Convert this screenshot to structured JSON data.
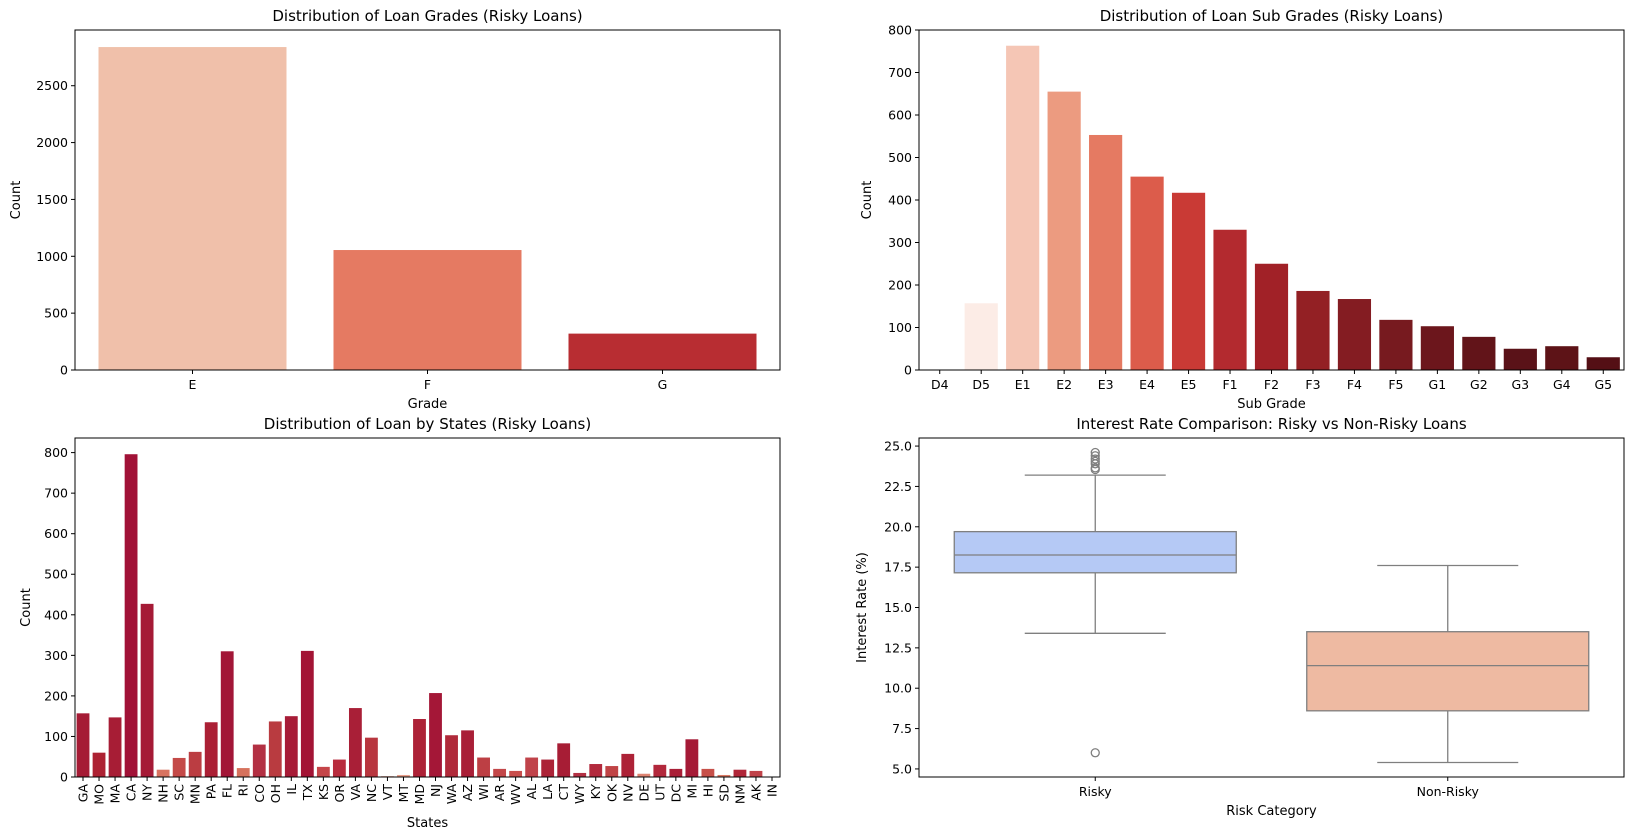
{
  "chart_data": [
    {
      "id": "grades",
      "type": "bar",
      "title": "Distribution of Loan Grades (Risky Loans)",
      "xlabel": "Grade",
      "ylabel": "Count",
      "categories": [
        "E",
        "F",
        "G"
      ],
      "values": [
        2840,
        1055,
        320
      ],
      "colors": [
        "#f0c0aa",
        "#e57a62",
        "#b82d32"
      ],
      "ylim": [
        0,
        2990
      ],
      "yticks": [
        0,
        500,
        1000,
        1500,
        2000,
        2500
      ],
      "grid": false
    },
    {
      "id": "subgrades",
      "type": "bar",
      "title": "Distribution of Loan Sub Grades (Risky Loans)",
      "xlabel": "Sub Grade",
      "ylabel": "Count",
      "categories": [
        "D4",
        "D5",
        "E1",
        "E2",
        "E3",
        "E4",
        "E5",
        "F1",
        "F2",
        "F3",
        "F4",
        "F5",
        "G1",
        "G2",
        "G3",
        "G4",
        "G5"
      ],
      "values": [
        1,
        157,
        763,
        655,
        553,
        455,
        417,
        330,
        250,
        186,
        167,
        118,
        103,
        78,
        50,
        56,
        30
      ],
      "colors": [
        "#fff5f0",
        "#fcece6",
        "#f5c6b5",
        "#ec9b80",
        "#e57a62",
        "#dc5c4b",
        "#c93a35",
        "#b32a2f",
        "#a12127",
        "#932024",
        "#841c22",
        "#771a1f",
        "#6c161c",
        "#621419",
        "#5a1218",
        "#5d1317",
        "#540f15"
      ],
      "ylim": [
        0,
        800
      ],
      "yticks": [
        0,
        100,
        200,
        300,
        400,
        500,
        600,
        700,
        800
      ],
      "grid": false
    },
    {
      "id": "states",
      "type": "bar",
      "title": "Distribution of Loan by States (Risky Loans)",
      "xlabel": "States",
      "ylabel": "Count",
      "categories": [
        "GA",
        "MO",
        "MA",
        "CA",
        "NY",
        "NH",
        "SC",
        "MN",
        "PA",
        "FL",
        "RI",
        "CO",
        "OH",
        "IL",
        "TX",
        "KS",
        "OR",
        "VA",
        "NC",
        "VT",
        "MT",
        "MD",
        "NJ",
        "WA",
        "AZ",
        "WI",
        "AR",
        "WV",
        "AL",
        "LA",
        "CT",
        "WY",
        "KY",
        "OK",
        "NV",
        "DE",
        "UT",
        "DC",
        "MI",
        "HI",
        "SD",
        "NM",
        "AK",
        "IN"
      ],
      "values": [
        157,
        60,
        147,
        796,
        427,
        18,
        47,
        62,
        135,
        310,
        22,
        80,
        137,
        150,
        311,
        25,
        43,
        170,
        97,
        2,
        5,
        143,
        207,
        103,
        115,
        48,
        20,
        15,
        48,
        43,
        83,
        10,
        32,
        27,
        57,
        8,
        30,
        20,
        93,
        20,
        5,
        18,
        15,
        0
      ],
      "colors": [
        "#a51b35",
        "#ad2233",
        "#a71d35",
        "#a11237",
        "#a51a36",
        "#d87360",
        "#c44a48",
        "#bb3d42",
        "#ab2035",
        "#a21637",
        "#d6725d",
        "#b33043",
        "#b93b40",
        "#a71c37",
        "#a31435",
        "#c54549",
        "#b82c3d",
        "#a91f37",
        "#b8363f",
        "#e8998a",
        "#e99f8b",
        "#ad2237",
        "#a41737",
        "#b02a3a",
        "#a91f37",
        "#bd3f44",
        "#c34749",
        "#c84e4c",
        "#c0434a",
        "#ac2337",
        "#a71d35",
        "#b33043",
        "#b22a3d",
        "#c04446",
        "#ad2237",
        "#de8472",
        "#b2283c",
        "#a91f37",
        "#a51a36",
        "#c75049",
        "#db7a65",
        "#b02639",
        "#c0434a",
        "#cccccc"
      ],
      "ylim": [
        0,
        836
      ],
      "yticks": [
        0,
        100,
        200,
        300,
        400,
        500,
        600,
        700,
        800
      ],
      "grid": false
    },
    {
      "id": "interest",
      "type": "box",
      "title": "Interest Rate Comparison: Risky vs Non-Risky Loans",
      "xlabel": "Risk Category",
      "ylabel": "Interest Rate (%)",
      "categories": [
        "Risky",
        "Non-Risky"
      ],
      "boxes": [
        {
          "q1": 17.15,
          "median": 18.25,
          "q3": 19.7,
          "whisker_low": 13.4,
          "whisker_high": 23.2,
          "outliers": [
            23.55,
            23.65,
            23.9,
            24.05,
            24.2,
            24.4,
            24.6,
            6.0
          ],
          "color": "#b5c9f5"
        },
        {
          "q1": 8.6,
          "median": 11.4,
          "q3": 13.5,
          "whisker_low": 5.4,
          "whisker_high": 17.6,
          "outliers": [],
          "color": "#eebaa2"
        }
      ],
      "ylim": [
        4.5,
        25.5
      ],
      "yticks": [
        5.0,
        7.5,
        10.0,
        12.5,
        15.0,
        17.5,
        20.0,
        22.5,
        25.0
      ],
      "grid": false
    }
  ]
}
